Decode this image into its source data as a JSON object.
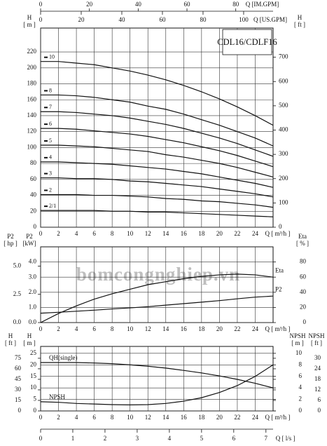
{
  "chart_data": [
    {
      "type": "line",
      "title": "CDL16/CDLF16",
      "color": "#111",
      "xlabel": "Q [ m³/h ]",
      "xlim": [
        0,
        26
      ],
      "xticks": [
        0,
        2,
        4,
        6,
        8,
        10,
        12,
        14,
        16,
        18,
        20,
        22,
        24
      ],
      "x2label": "Q [US.GPM]",
      "x2lim": [
        0,
        114.5
      ],
      "x2ticks": [
        0,
        20,
        40,
        60,
        80,
        100
      ],
      "x3label": "Q [IM.GPM]",
      "x3lim": [
        0,
        95.3
      ],
      "x3ticks": [
        0,
        20,
        40,
        60,
        80
      ],
      "ylabel": "H",
      "yunit": "[ m ]",
      "ylim": [
        0,
        250
      ],
      "yticks": [
        0,
        20,
        40,
        60,
        80,
        100,
        120,
        140,
        160,
        180,
        200,
        220
      ],
      "y2label": "H",
      "y2unit": "[ ft ]",
      "y2lim": [
        0,
        820.2
      ],
      "y2ticks": [
        0,
        100,
        200,
        300,
        400,
        500,
        600,
        700
      ],
      "grid": true,
      "x": [
        0,
        2,
        4,
        6,
        8,
        10,
        12,
        14,
        16,
        18,
        20,
        22,
        24,
        26
      ],
      "series": [
        {
          "name": "10",
          "values": [
            208,
            208,
            206,
            204,
            200,
            196,
            191,
            185,
            178,
            170,
            161,
            151,
            140,
            128
          ]
        },
        {
          "name": "8",
          "values": [
            166,
            166,
            165,
            163,
            160,
            157,
            152,
            148,
            142,
            135,
            128,
            120,
            112,
            102
          ]
        },
        {
          "name": "7",
          "values": [
            145,
            145,
            144,
            142,
            140,
            137,
            133,
            129,
            124,
            118,
            112,
            105,
            97,
            89
          ]
        },
        {
          "name": "6",
          "values": [
            124,
            124,
            123,
            121,
            119,
            117,
            114,
            110,
            106,
            101,
            96,
            90,
            83,
            76
          ]
        },
        {
          "name": "5",
          "values": [
            103,
            103,
            102,
            101,
            99,
            97,
            95,
            91,
            88,
            84,
            80,
            75,
            69,
            63
          ]
        },
        {
          "name": "4",
          "values": [
            82,
            82,
            81,
            80,
            79,
            77,
            75,
            73,
            70,
            67,
            63,
            59,
            55,
            50
          ]
        },
        {
          "name": "3",
          "values": [
            62,
            62,
            61,
            61,
            60,
            58,
            57,
            55,
            53,
            51,
            48,
            45,
            42,
            38
          ]
        },
        {
          "name": "2",
          "values": [
            41,
            41,
            41,
            40,
            40,
            39,
            38,
            36,
            35,
            33,
            32,
            30,
            28,
            25
          ]
        },
        {
          "name": "2/1",
          "values": [
            21,
            21,
            21,
            21,
            20,
            20,
            19,
            19,
            18,
            17,
            16,
            15,
            14,
            13
          ]
        }
      ]
    },
    {
      "type": "line",
      "color": "#111",
      "watermark": "bomcongnghiep.vn",
      "xlabel": "Q [ m³/h ]",
      "xlim": [
        0,
        26
      ],
      "xticks": [
        0,
        2,
        4,
        6,
        8,
        10,
        12,
        14,
        16,
        18,
        20,
        22,
        24
      ],
      "ylabel": "P2",
      "yunit": "[kW]",
      "ylim": [
        0,
        5
      ],
      "yticks": [
        {
          "value": 0,
          "label": "0.0"
        },
        {
          "value": 1,
          "label": "1.0"
        },
        {
          "value": 2,
          "label": "2.0"
        },
        {
          "value": 3,
          "label": "3.0"
        },
        {
          "value": 4,
          "label": "4.0"
        }
      ],
      "y3label": "P2",
      "y3unit": "[ hp ]",
      "y3lim": [
        0,
        6.705
      ],
      "y3ticks": [
        {
          "value": 0,
          "label": "0.0"
        },
        2.5,
        {
          "value": 5,
          "label": "5.0"
        }
      ],
      "y2label": "Eta",
      "y2unit": "[ % ]",
      "y2lim": [
        0,
        100
      ],
      "y2ticks": [
        0,
        20,
        40,
        60,
        80
      ],
      "grid": true,
      "x": [
        0,
        2,
        4,
        6,
        8,
        10,
        12,
        14,
        16,
        18,
        20,
        22,
        24,
        26
      ],
      "series": [
        {
          "name": "Eta",
          "axis": "y2",
          "values": [
            0,
            12,
            22,
            31,
            38,
            44,
            50,
            54,
            58,
            61,
            63,
            64,
            63,
            60
          ]
        },
        {
          "name": "P2",
          "values": [
            0.62,
            0.68,
            0.75,
            0.82,
            0.9,
            0.97,
            1.05,
            1.15,
            1.25,
            1.35,
            1.45,
            1.57,
            1.68,
            1.75
          ]
        }
      ]
    },
    {
      "type": "line",
      "color": "#111",
      "xlabel": "Q [ m³/h ]",
      "xlim": [
        0,
        26
      ],
      "xticks": [
        0,
        2,
        4,
        6,
        8,
        10,
        12,
        14,
        16,
        18,
        20,
        22,
        24
      ],
      "x2label": "Q [ l/s ]",
      "x2lim": [
        0,
        7.222
      ],
      "x2ticks": [
        0,
        1,
        2,
        3,
        4,
        5,
        6,
        7
      ],
      "ylabel": "H",
      "yunit": "[ m ]",
      "ylim": [
        0,
        28
      ],
      "yticks": [
        0,
        5,
        10,
        15,
        20,
        25
      ],
      "y3label": "H",
      "y3unit": "[ ft ]",
      "y3lim": [
        0,
        91.86
      ],
      "y3ticks": [
        0,
        15,
        30,
        45,
        60,
        75
      ],
      "y2label": "NPSH",
      "y2unit": "[ m ]",
      "y2lim": [
        0,
        11.2
      ],
      "y2ticks": [
        0,
        2,
        4,
        6,
        8,
        10
      ],
      "y4label": "NPSH",
      "y4unit": "[ ft ]",
      "y4lim": [
        0,
        36.75
      ],
      "y4ticks": [
        0,
        6,
        12,
        18,
        24,
        30
      ],
      "grid": true,
      "x": [
        0,
        2,
        4,
        6,
        8,
        10,
        12,
        14,
        16,
        18,
        20,
        22,
        24,
        26
      ],
      "series": [
        {
          "name": "QH(single)",
          "values": [
            21,
            21,
            21,
            20.8,
            20.5,
            20,
            19.4,
            18.6,
            17.6,
            16.5,
            15.2,
            13.7,
            12,
            10
          ]
        },
        {
          "name": "NPSH",
          "axis": "y2",
          "values": [
            1.6,
            1.5,
            1.3,
            1.2,
            1.1,
            1.05,
            1.1,
            1.3,
            1.7,
            2.3,
            3.2,
            4.4,
            6.0,
            8.0
          ]
        }
      ]
    }
  ]
}
